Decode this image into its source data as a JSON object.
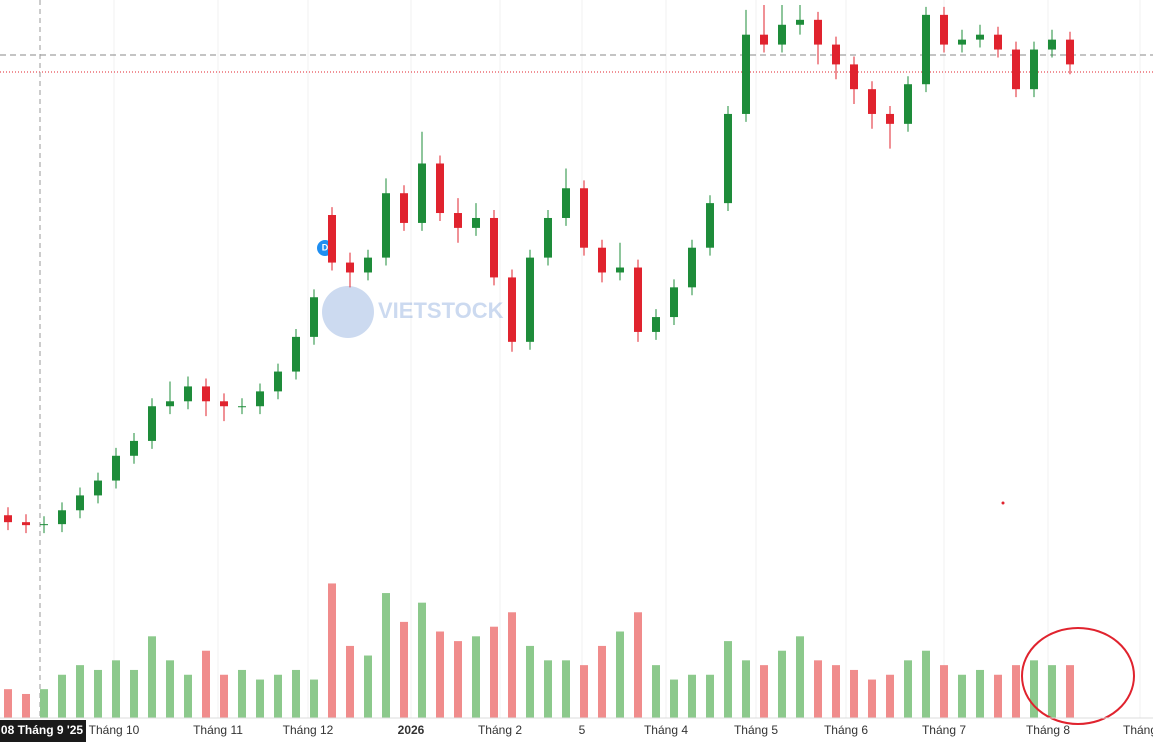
{
  "chart_data": {
    "type": "candlestick",
    "watermark": "VIETSTOCK",
    "marker": "D",
    "time_labels": [
      "08 Tháng 9 '25",
      "Tháng 10",
      "Tháng 11",
      "Tháng 12",
      "2026",
      "Tháng 2",
      "5",
      "Tháng 4",
      "Tháng 5",
      "Tháng 6",
      "Tháng 7",
      "Tháng 8",
      "Tháng"
    ],
    "open": [
      25,
      18,
      15,
      16,
      30,
      45,
      60,
      85,
      100,
      135,
      140,
      155,
      140,
      135,
      135,
      150,
      170,
      205,
      328,
      280,
      270,
      285,
      350,
      320,
      380,
      330,
      315,
      325,
      265,
      200,
      285,
      325,
      355,
      295,
      270,
      275,
      210,
      225,
      255,
      295,
      340,
      430,
      510,
      500,
      520,
      525,
      500,
      480,
      455,
      430,
      420,
      460,
      530,
      500,
      505,
      510,
      495,
      455,
      495,
      505
    ],
    "high": [
      33,
      26,
      24,
      38,
      53,
      68,
      93,
      108,
      143,
      160,
      165,
      163,
      148,
      143,
      158,
      178,
      213,
      253,
      336,
      290,
      293,
      365,
      358,
      412,
      388,
      345,
      340,
      333,
      273,
      293,
      333,
      375,
      363,
      303,
      300,
      283,
      233,
      263,
      303,
      348,
      438,
      535,
      540,
      540,
      540,
      533,
      508,
      488,
      463,
      438,
      468,
      538,
      538,
      515,
      520,
      518,
      503,
      503,
      515,
      513
    ],
    "low": [
      10,
      7,
      7,
      8,
      22,
      37,
      52,
      77,
      92,
      127,
      132,
      125,
      120,
      127,
      127,
      142,
      162,
      197,
      272,
      255,
      262,
      277,
      312,
      312,
      322,
      300,
      307,
      257,
      190,
      192,
      277,
      317,
      287,
      260,
      262,
      200,
      202,
      217,
      247,
      287,
      332,
      422,
      492,
      492,
      510,
      480,
      465,
      440,
      415,
      395,
      412,
      452,
      492,
      492,
      497,
      487,
      447,
      447,
      487,
      470
    ],
    "close": [
      18,
      15,
      16,
      30,
      45,
      60,
      85,
      100,
      135,
      140,
      155,
      140,
      135,
      135,
      150,
      170,
      205,
      245,
      280,
      270,
      285,
      350,
      320,
      380,
      330,
      315,
      325,
      265,
      200,
      285,
      325,
      355,
      295,
      270,
      275,
      210,
      225,
      255,
      295,
      340,
      430,
      510,
      500,
      520,
      525,
      500,
      480,
      455,
      430,
      420,
      460,
      530,
      500,
      505,
      510,
      495,
      455,
      495,
      505,
      480
    ],
    "volume": [
      30,
      25,
      30,
      45,
      55,
      50,
      60,
      50,
      85,
      60,
      45,
      70,
      45,
      50,
      40,
      45,
      50,
      40,
      140,
      75,
      65,
      130,
      100,
      120,
      90,
      80,
      85,
      95,
      110,
      75,
      60,
      60,
      55,
      75,
      90,
      110,
      55,
      40,
      45,
      45,
      80,
      60,
      55,
      70,
      85,
      60,
      55,
      50,
      40,
      45,
      60,
      70,
      55,
      45,
      50,
      45,
      55,
      60,
      55,
      55
    ],
    "ylim": [
      0,
      545
    ],
    "volume_ylim": [
      0,
      180
    ],
    "up_color": "#1e8c3a",
    "down_color": "#e0232e",
    "volume_up_color": "#8cc98c",
    "volume_down_color": "#f08c8c"
  }
}
